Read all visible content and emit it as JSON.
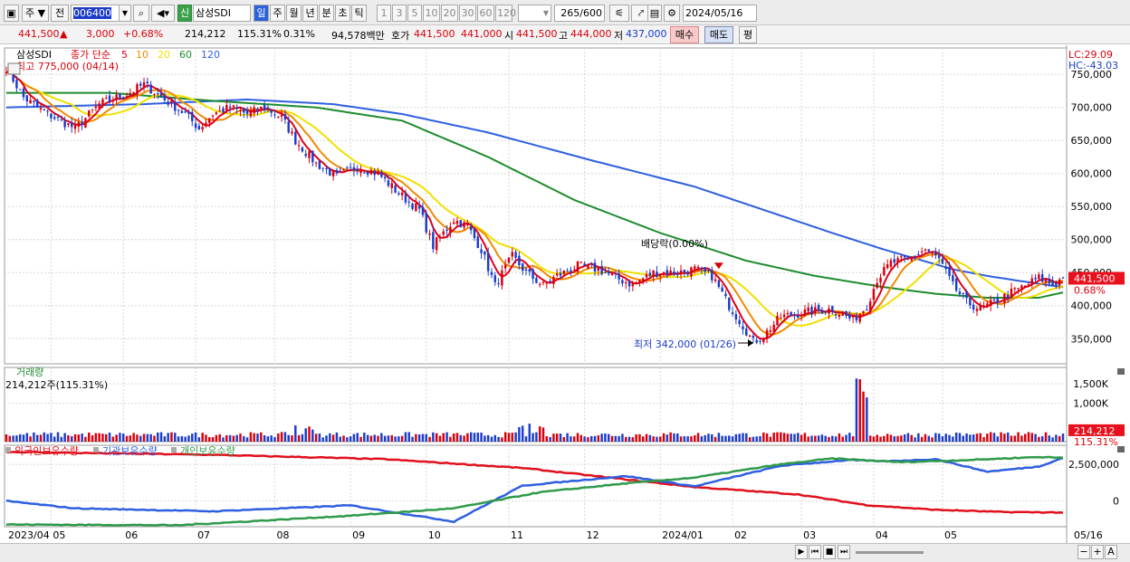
{
  "toolbar": {
    "window_icon": "window-icon",
    "type_label": "주",
    "dropdown_icon": "▼",
    "jeon_label": "전",
    "code_value": "006400",
    "search_icon": "search-icon",
    "speaker_icon": "speaker-icon",
    "shin_badge": "신",
    "stock_name": "삼성SDI",
    "periods": [
      "일",
      "주",
      "월",
      "년",
      "분",
      "초",
      "틱"
    ],
    "active_period": "일",
    "intervals": [
      "1",
      "3",
      "5",
      "10",
      "20",
      "30",
      "60",
      "120"
    ],
    "count_value": "265",
    "count_total": "/600",
    "date_value": "2024/05/16"
  },
  "quote": {
    "price": "441,500",
    "arrow": "▲",
    "change": "3,000",
    "change_pct": "+0.68%",
    "volume": "214,212",
    "volume_ratio": "115.31%",
    "turnover": "0.31%",
    "amount": "94,578백만",
    "ask_label": "호가",
    "ask": "441,500",
    "bid": "441,000",
    "open_label": "시",
    "open": "441,500",
    "high_label": "고",
    "high": "444,000",
    "low_label": "저",
    "low": "437,000",
    "buy_label": "매수",
    "sell_label": "매도",
    "eval_label": "평"
  },
  "colors": {
    "up": "#d8000c",
    "down": "#1c3dc9",
    "ma5": "#e0001a",
    "ma10": "#f08a00",
    "ma20": "#f0e000",
    "ma60": "#1e8c2e",
    "ma120": "#2e5fe0",
    "foreign": "#e0101c",
    "inst": "#2e5fe0",
    "indiv": "#2f9a4a"
  },
  "chart_data": [
    {
      "type": "candlestick",
      "title": "삼성SDI",
      "legend_prefix": "종가 단순",
      "ma_periods": [
        "5",
        "10",
        "20",
        "60",
        "120"
      ],
      "corner_labels": [
        "LC:29.09",
        "HC:-43.03"
      ],
      "y_ticks": [
        "750,000",
        "700,000",
        "650,000",
        "600,000",
        "550,000",
        "500,000",
        "450,000",
        "400,000",
        "350,000"
      ],
      "y_values": [
        750000,
        700000,
        650000,
        600000,
        550000,
        500000,
        450000,
        400000,
        350000
      ],
      "ylim": [
        312000,
        790000
      ],
      "x_labels": [
        "2023/04",
        "05",
        "06",
        "07",
        "08",
        "09",
        "10",
        "11",
        "12",
        "2024/01",
        "02",
        "03",
        "04",
        "05",
        "05/16"
      ],
      "annotations": {
        "high": "최고 775,000 (04/14)",
        "low": "최저 342,000 (01/26)",
        "dividend": "배당락(0.00%)"
      },
      "last_price": "441,500",
      "last_change": "0.68%",
      "close_anchors": [
        [
          0,
          760000
        ],
        [
          5,
          715000
        ],
        [
          12,
          690000
        ],
        [
          20,
          668000
        ],
        [
          27,
          705000
        ],
        [
          35,
          720000
        ],
        [
          40,
          735000
        ],
        [
          46,
          712000
        ],
        [
          52,
          690000
        ],
        [
          56,
          668000
        ],
        [
          60,
          690000
        ],
        [
          65,
          700000
        ],
        [
          70,
          690000
        ],
        [
          75,
          700000
        ],
        [
          80,
          685000
        ],
        [
          84,
          650000
        ],
        [
          90,
          615000
        ],
        [
          96,
          595000
        ],
        [
          102,
          610000
        ],
        [
          108,
          600000
        ],
        [
          114,
          570000
        ],
        [
          120,
          545000
        ],
        [
          124,
          490000
        ],
        [
          130,
          530000
        ],
        [
          134,
          520000
        ],
        [
          138,
          485000
        ],
        [
          142,
          430000
        ],
        [
          147,
          475000
        ],
        [
          151,
          450000
        ],
        [
          156,
          430000
        ],
        [
          160,
          445000
        ],
        [
          166,
          460000
        ],
        [
          172,
          455000
        ],
        [
          178,
          440000
        ],
        [
          182,
          432000
        ],
        [
          188,
          450000
        ],
        [
          195,
          450000
        ],
        [
          200,
          455000
        ],
        [
          205,
          445000
        ],
        [
          210,
          400000
        ],
        [
          214,
          370000
        ],
        [
          217,
          345000
        ],
        [
          220,
          355000
        ],
        [
          225,
          383000
        ],
        [
          232,
          390000
        ],
        [
          240,
          395000
        ],
        [
          246,
          378000
        ],
        [
          250,
          400000
        ],
        [
          253,
          440000
        ],
        [
          257,
          465000
        ],
        [
          262,
          470000
        ],
        [
          267,
          485000
        ],
        [
          271,
          470000
        ],
        [
          275,
          430000
        ],
        [
          279,
          405000
        ],
        [
          283,
          395000
        ],
        [
          287,
          405000
        ],
        [
          292,
          420000
        ],
        [
          296,
          430000
        ],
        [
          300,
          442000
        ],
        [
          304,
          432000
        ],
        [
          307,
          441500
        ]
      ],
      "ma120_anchors": [
        [
          0,
          700000
        ],
        [
          40,
          705000
        ],
        [
          70,
          712000
        ],
        [
          95,
          705000
        ],
        [
          115,
          690000
        ],
        [
          140,
          662000
        ],
        [
          170,
          620000
        ],
        [
          200,
          580000
        ],
        [
          220,
          545000
        ],
        [
          240,
          510000
        ],
        [
          255,
          485000
        ],
        [
          265,
          470000
        ],
        [
          275,
          455000
        ],
        [
          285,
          445000
        ],
        [
          295,
          437000
        ],
        [
          307,
          428000
        ]
      ],
      "ma60_anchors": [
        [
          0,
          722000
        ],
        [
          30,
          722000
        ],
        [
          60,
          710000
        ],
        [
          90,
          700000
        ],
        [
          115,
          680000
        ],
        [
          140,
          625000
        ],
        [
          165,
          560000
        ],
        [
          190,
          510000
        ],
        [
          215,
          468000
        ],
        [
          235,
          445000
        ],
        [
          255,
          428000
        ],
        [
          270,
          418000
        ],
        [
          285,
          412000
        ],
        [
          300,
          412000
        ],
        [
          307,
          420000
        ]
      ],
      "volume": {
        "label": "거래량",
        "summary": "214,212주(115.31%)",
        "y_ticks": [
          "1,500K",
          "1,000K"
        ],
        "y_values": [
          1500000,
          1000000
        ],
        "ylim": [
          0,
          1880000
        ],
        "last": "214,212",
        "last_ratio": "115.31%"
      },
      "holdings": {
        "legend": [
          "외국인보유수량",
          "기관보유수량",
          "개인보유수량"
        ],
        "y_ticks": [
          "2,500,000",
          "0"
        ],
        "y_values": [
          2500000,
          0
        ],
        "ylim": [
          -1750000,
          3800000
        ]
      },
      "n_days": 308
    }
  ],
  "bottombar": {
    "scroll_right": "▶",
    "first": "⏮",
    "stop": "■",
    "last": "⏭",
    "minus": "−",
    "plus": "+",
    "font": "A",
    "close": "✕"
  }
}
